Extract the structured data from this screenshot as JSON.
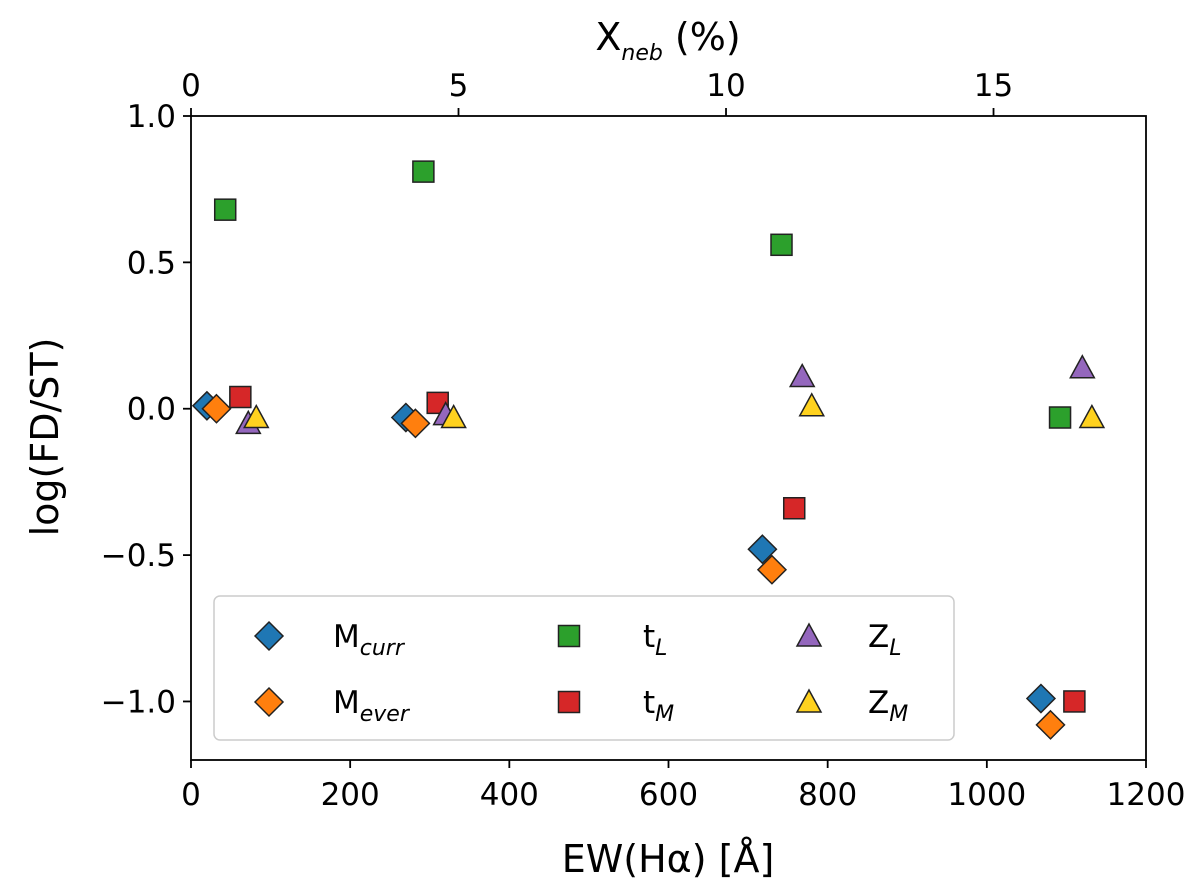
{
  "chart_data": {
    "type": "scatter",
    "xlabel": "EW(Hα) [Å]",
    "ylabel": "log(FD/ST)",
    "top_xlabel": {
      "main": "X",
      "sub": "neb",
      "suffix": " (%)"
    },
    "xlim": [
      0,
      1200
    ],
    "ylim": [
      -1.2,
      1.0
    ],
    "top_xlim": [
      0,
      17.85
    ],
    "x_ticks": [
      0,
      200,
      400,
      600,
      800,
      1000,
      1200
    ],
    "x_tick_labels": [
      "0",
      "200",
      "400",
      "600",
      "800",
      "1000",
      "1200"
    ],
    "y_ticks": [
      -1.0,
      -0.5,
      0.0,
      0.5,
      1.0
    ],
    "y_tick_labels": [
      "−1.0",
      "−0.5",
      "0.0",
      "0.5",
      "1.0"
    ],
    "top_ticks": [
      0,
      5,
      10,
      15
    ],
    "top_tick_labels": [
      "0",
      "5",
      "10",
      "15"
    ],
    "legend_position": "lower-left",
    "series": [
      {
        "name": "M_curr",
        "label_main": "M",
        "label_sub": "curr",
        "marker": "diamond",
        "color": "#1f77b4",
        "points": [
          [
            20,
            0.01
          ],
          [
            270,
            -0.03
          ],
          [
            718,
            -0.48
          ],
          [
            1068,
            -0.99
          ]
        ]
      },
      {
        "name": "M_ever",
        "label_main": "M",
        "label_sub": "ever",
        "marker": "diamond",
        "color": "#ff7f0e",
        "points": [
          [
            32,
            0.0
          ],
          [
            282,
            -0.05
          ],
          [
            730,
            -0.55
          ],
          [
            1080,
            -1.08
          ]
        ]
      },
      {
        "name": "t_L",
        "label_main": "t",
        "label_sub": "L",
        "marker": "square",
        "color": "#2ca02c",
        "points": [
          [
            43,
            0.68
          ],
          [
            292,
            0.81
          ],
          [
            742,
            0.56
          ],
          [
            1092,
            -0.03
          ]
        ]
      },
      {
        "name": "t_M",
        "label_main": "t",
        "label_sub": "M",
        "marker": "square",
        "color": "#d62728",
        "points": [
          [
            62,
            0.04
          ],
          [
            310,
            0.02
          ],
          [
            758,
            -0.34
          ],
          [
            1110,
            -1.0
          ]
        ]
      },
      {
        "name": "Z_L",
        "label_main": "Z",
        "label_sub": "L",
        "marker": "triangle",
        "color": "#9467bd",
        "points": [
          [
            72,
            -0.05
          ],
          [
            320,
            -0.02
          ],
          [
            768,
            0.11
          ],
          [
            1120,
            0.14
          ]
        ]
      },
      {
        "name": "Z_M",
        "label_main": "Z",
        "label_sub": "M",
        "marker": "triangle",
        "color": "#ffd21f",
        "points": [
          [
            82,
            -0.03
          ],
          [
            330,
            -0.03
          ],
          [
            780,
            0.01
          ],
          [
            1132,
            -0.03
          ]
        ]
      }
    ]
  }
}
